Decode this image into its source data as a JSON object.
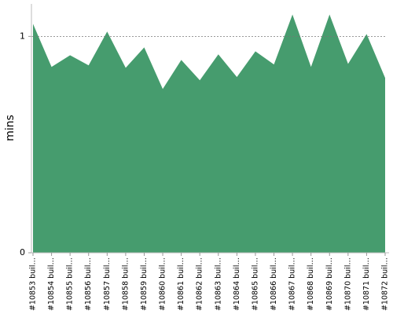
{
  "chart_data": {
    "type": "area",
    "y_label": "mins",
    "categories": [
      "#10853 buil…",
      "#10854 buil…",
      "#10855 buil…",
      "#10856 buil…",
      "#10857 buil…",
      "#10858 buil…",
      "#10859 buil…",
      "#10860 buil…",
      "#10861 buil…",
      "#10862 buil…",
      "#10863 buil…",
      "#10864 buil…",
      "#10865 buil…",
      "#10866 buil…",
      "#10867 buil…",
      "#10868 buil…",
      "#10869 buil…",
      "#10870 buil…",
      "#10871 buil…",
      "#10872 buil…"
    ],
    "values": [
      1.058,
      0.859,
      0.913,
      0.866,
      1.022,
      0.855,
      0.949,
      0.757,
      0.891,
      0.797,
      0.917,
      0.812,
      0.931,
      0.87,
      1.101,
      0.859,
      1.101,
      0.873,
      1.011,
      0.808
    ],
    "color": "#469c6e",
    "ylim": [
      0,
      1.15
    ],
    "yticks": [
      0,
      1
    ],
    "grid": true
  }
}
